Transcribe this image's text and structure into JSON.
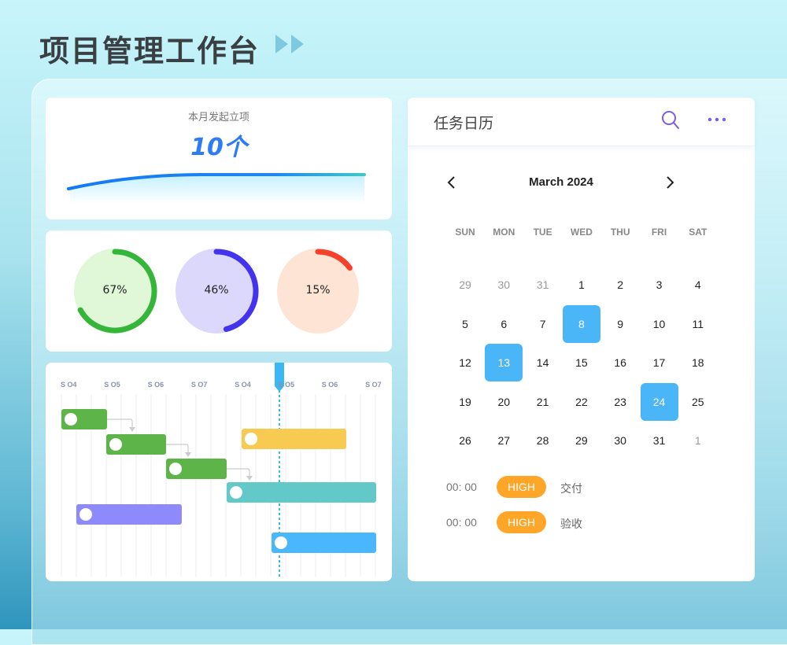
{
  "header": {
    "title": "项目管理工作台",
    "icon": "double-play-icon"
  },
  "summary": {
    "label": "本月发起立项",
    "value": "10个",
    "accent": "#2d7bf7"
  },
  "rings": [
    {
      "percent": 67,
      "label": "67%",
      "color": "#35b53a",
      "fill": "#e0f8d8"
    },
    {
      "percent": 46,
      "label": "46%",
      "color": "#4433ee",
      "fill": "#dcd8fc"
    },
    {
      "percent": 15,
      "label": "15%",
      "color": "#f5402c",
      "fill": "#fde4d4"
    }
  ],
  "gantt": {
    "labels": [
      "S O4",
      "S O5",
      "S O6",
      "S O7",
      "S O4",
      "S O5",
      "S O6",
      "S O7"
    ],
    "bars": [
      {
        "color": "#5db549"
      },
      {
        "color": "#5db549"
      },
      {
        "color": "#5db549"
      },
      {
        "color": "#62c8c8"
      },
      {
        "color": "#f7cb52"
      },
      {
        "color": "#8e8afc"
      },
      {
        "color": "#4ab6fc"
      }
    ]
  },
  "calendar": {
    "title": "任务日历",
    "month": "March 2024",
    "weekdays": [
      "SUN",
      "MON",
      "TUE",
      "WED",
      "THU",
      "FRI",
      "SAT"
    ],
    "days": [
      [
        "29",
        "30",
        "31",
        "1",
        "2",
        "3",
        "4"
      ],
      [
        "5",
        "6",
        "7",
        "8",
        "9",
        "10",
        "11"
      ],
      [
        "12",
        "13",
        "14",
        "15",
        "16",
        "17",
        "18"
      ],
      [
        "19",
        "20",
        "21",
        "22",
        "23",
        "24",
        "25"
      ],
      [
        "26",
        "27",
        "28",
        "29",
        "30",
        "31",
        "1"
      ]
    ],
    "selected": [
      "8",
      "13",
      "24"
    ],
    "events": [
      {
        "time": "00: 00",
        "priority": "HIGH",
        "name": "交付"
      },
      {
        "time": "00: 00",
        "priority": "HIGH",
        "name": "验收"
      }
    ]
  }
}
